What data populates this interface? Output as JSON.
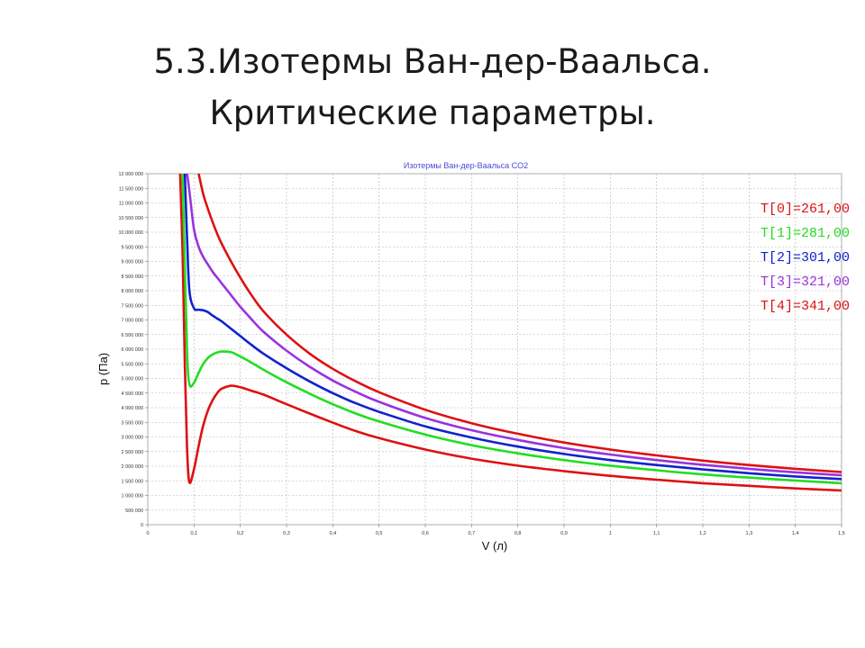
{
  "slide": {
    "title_line1": "5.3.Изотермы Ван-дер-Ваальса.",
    "title_line2": "Критические параметры."
  },
  "chart_data": {
    "type": "line",
    "title": "Изотермы Ван-дер-Ваальса CO2",
    "xlabel": "V (л)",
    "ylabel": "p (Па)",
    "xlim": [
      0,
      1.5
    ],
    "ylim": [
      0,
      12000000
    ],
    "grid": true,
    "legend_position": "top-right",
    "x_ticks": [
      "0",
      "0,1",
      "0,2",
      "0,3",
      "0,4",
      "0,5",
      "0,6",
      "0,7",
      "0,8",
      "0,9",
      "1",
      "1,1",
      "1,2",
      "1,3",
      "1,4",
      "1,5"
    ],
    "y_ticks": [
      "0",
      "500 000",
      "1 000 000",
      "1 500 000",
      "2 000 000",
      "2 500 000",
      "3 000 000",
      "3 500 000",
      "4 000 000",
      "4 500 000",
      "5 000 000",
      "5 500 000",
      "6 000 000",
      "6 500 000",
      "7 000 000",
      "7 500 000",
      "8 000 000",
      "8 500 000",
      "9 000 000",
      "9 500 000",
      "10 000 000",
      "10 500 000",
      "11 000 000",
      "11 500 000",
      "12 000 000"
    ],
    "x": [
      0.06,
      0.065,
      0.07,
      0.075,
      0.08,
      0.085,
      0.09,
      0.1,
      0.11,
      0.12,
      0.13,
      0.14,
      0.15,
      0.16,
      0.18,
      0.2,
      0.22,
      0.25,
      0.3,
      0.35,
      0.4,
      0.45,
      0.5,
      0.6,
      0.7,
      0.8,
      0.9,
      1.0,
      1.1,
      1.2,
      1.3,
      1.4,
      1.5
    ],
    "series": [
      {
        "name": "T[0]=261,00",
        "color": "#dd1111",
        "values": [
          null,
          null,
          12000000,
          9500000,
          5500000,
          2600000,
          1450000,
          1900000,
          2700000,
          3400000,
          3900000,
          4250000,
          4500000,
          4650000,
          4750000,
          4700000,
          4600000,
          4450000,
          4120000,
          3800000,
          3490000,
          3200000,
          2960000,
          2570000,
          2260000,
          2020000,
          1830000,
          1670000,
          1540000,
          1420000,
          1330000,
          1240000,
          1170000
        ]
      },
      {
        "name": "T[1]=281,00",
        "color": "#22dd22",
        "values": [
          null,
          null,
          null,
          12000000,
          9000000,
          5900000,
          4800000,
          4850000,
          5200000,
          5500000,
          5700000,
          5820000,
          5890000,
          5920000,
          5900000,
          5750000,
          5580000,
          5300000,
          4870000,
          4480000,
          4120000,
          3800000,
          3530000,
          3080000,
          2720000,
          2440000,
          2210000,
          2020000,
          1860000,
          1720000,
          1610000,
          1510000,
          1420000
        ]
      },
      {
        "name": "T[2]=301,00",
        "color": "#1122cc",
        "values": [
          null,
          null,
          null,
          null,
          12000000,
          9800000,
          8000000,
          7400000,
          7350000,
          7330000,
          7270000,
          7150000,
          7050000,
          6950000,
          6700000,
          6450000,
          6200000,
          5850000,
          5350000,
          4900000,
          4500000,
          4150000,
          3860000,
          3360000,
          2980000,
          2670000,
          2420000,
          2210000,
          2040000,
          1890000,
          1760000,
          1650000,
          1560000
        ]
      },
      {
        "name": "T[3]=321,00",
        "color": "#9933dd",
        "values": [
          null,
          null,
          null,
          null,
          null,
          12000000,
          11400000,
          10100000,
          9500000,
          9150000,
          8900000,
          8650000,
          8450000,
          8250000,
          7850000,
          7450000,
          7100000,
          6600000,
          5950000,
          5400000,
          4930000,
          4540000,
          4200000,
          3650000,
          3230000,
          2900000,
          2620000,
          2400000,
          2210000,
          2050000,
          1910000,
          1790000,
          1690000
        ]
      },
      {
        "name": "T[4]=341,00",
        "color": "#dd1111",
        "values": [
          null,
          null,
          null,
          null,
          null,
          null,
          null,
          null,
          12000000,
          11300000,
          10800000,
          10350000,
          9950000,
          9600000,
          9000000,
          8450000,
          7950000,
          7300000,
          6500000,
          5850000,
          5330000,
          4900000,
          4530000,
          3930000,
          3470000,
          3110000,
          2810000,
          2570000,
          2370000,
          2190000,
          2040000,
          1910000,
          1800000
        ]
      }
    ]
  }
}
